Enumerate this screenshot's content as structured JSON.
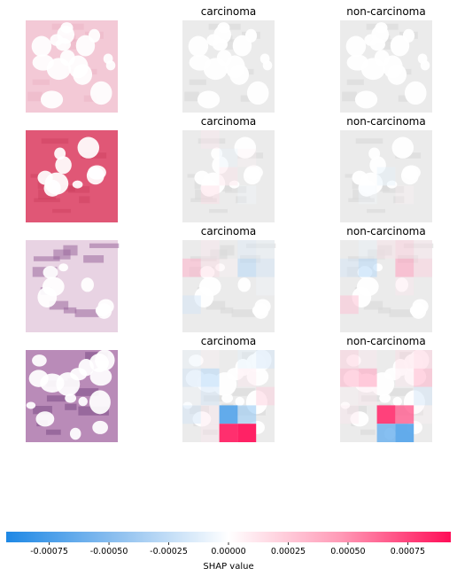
{
  "chart_data": {
    "type": "heatmap",
    "column_titles": [
      "",
      "carcinoma",
      "non-carcinoma"
    ],
    "colorbar": {
      "label": "SHAP value",
      "range": [
        -0.00093,
        0.00093
      ],
      "ticks": [
        "-0.00075",
        "-0.00050",
        "-0.00025",
        "0.00000",
        "0.00025",
        "0.00050",
        "0.00075"
      ],
      "tick_values": [
        -0.00075,
        -0.0005,
        -0.00025,
        0.0,
        0.00025,
        0.0005,
        0.00075
      ],
      "negative_color": "#1e88e5",
      "positive_color": "#ff0d57"
    },
    "rows": [
      {
        "image": "pale-pink-adipose",
        "carcinoma": [
          [
            0,
            0,
            0,
            0,
            0
          ],
          [
            0,
            0,
            0,
            0,
            0
          ],
          [
            0,
            0,
            0,
            0,
            0
          ],
          [
            0,
            0,
            0,
            0,
            0
          ],
          [
            0,
            0,
            0,
            0,
            0
          ]
        ],
        "non_carcinoma": [
          [
            0,
            0,
            0,
            0,
            0
          ],
          [
            0,
            0,
            0,
            0,
            0
          ],
          [
            0,
            0,
            0,
            0,
            0
          ],
          [
            0,
            0,
            0,
            0,
            0
          ],
          [
            0,
            0,
            0,
            0,
            0
          ]
        ]
      },
      {
        "image": "dense-pink-stroma-with-fat",
        "carcinoma": [
          [
            0,
            0.0001,
            0,
            0,
            0
          ],
          [
            0,
            0,
            -0.0001,
            5e-05,
            0
          ],
          [
            0,
            0,
            0.00012,
            0,
            0
          ],
          [
            0,
            0.00015,
            0,
            -5e-05,
            0
          ],
          [
            0,
            0,
            0,
            0,
            0
          ]
        ],
        "non_carcinoma": [
          [
            0,
            0,
            0,
            0,
            0
          ],
          [
            0,
            0,
            0,
            0,
            0
          ],
          [
            0,
            0,
            -0.00012,
            0,
            0
          ],
          [
            0,
            -5e-05,
            0,
            5e-05,
            0
          ],
          [
            0,
            0,
            0,
            0,
            0
          ]
        ]
      },
      {
        "image": "purple-tissue-with-fat",
        "carcinoma": [
          [
            0,
            0.0001,
            0,
            -0.00015,
            -0.0001
          ],
          [
            0.0003,
            0.00015,
            5e-05,
            -0.0003,
            -0.0002
          ],
          [
            0,
            0,
            0,
            0,
            -5e-05
          ],
          [
            -0.0002,
            0,
            0,
            0,
            0
          ],
          [
            0,
            0,
            0,
            0,
            0
          ]
        ],
        "non_carcinoma": [
          [
            0,
            -0.0001,
            0.00012,
            0.0002,
            0.0001
          ],
          [
            -0.0002,
            -0.0003,
            0,
            0.00035,
            0.0002
          ],
          [
            0,
            0,
            0,
            0.0001,
            0
          ],
          [
            0.00025,
            0,
            0,
            0,
            0
          ],
          [
            0,
            0,
            0,
            0,
            0
          ]
        ]
      },
      {
        "image": "purple-tissue-dense",
        "carcinoma": [
          [
            -0.0001,
            5e-05,
            0,
            -0.00012,
            -0.0002
          ],
          [
            -0.0002,
            -0.0003,
            0,
            0.0001,
            0
          ],
          [
            -5e-05,
            -0.0002,
            0,
            0,
            0.0002
          ],
          [
            -0.0002,
            0.0001,
            -0.0007,
            -0.0004,
            0
          ],
          [
            0,
            0.0001,
            0.0008,
            0.00085,
            0
          ]
        ],
        "non_carcinoma": [
          [
            0.0002,
            0.0001,
            0,
            0.00015,
            0.0002
          ],
          [
            0.0003,
            0.00035,
            0,
            0.0001,
            0.0003
          ],
          [
            5e-05,
            0.0001,
            0,
            0,
            -0.0002
          ],
          [
            0.0001,
            0,
            0.00075,
            0.0006,
            5e-05
          ],
          [
            0,
            0,
            -0.0006,
            -0.0007,
            0
          ]
        ]
      }
    ]
  }
}
